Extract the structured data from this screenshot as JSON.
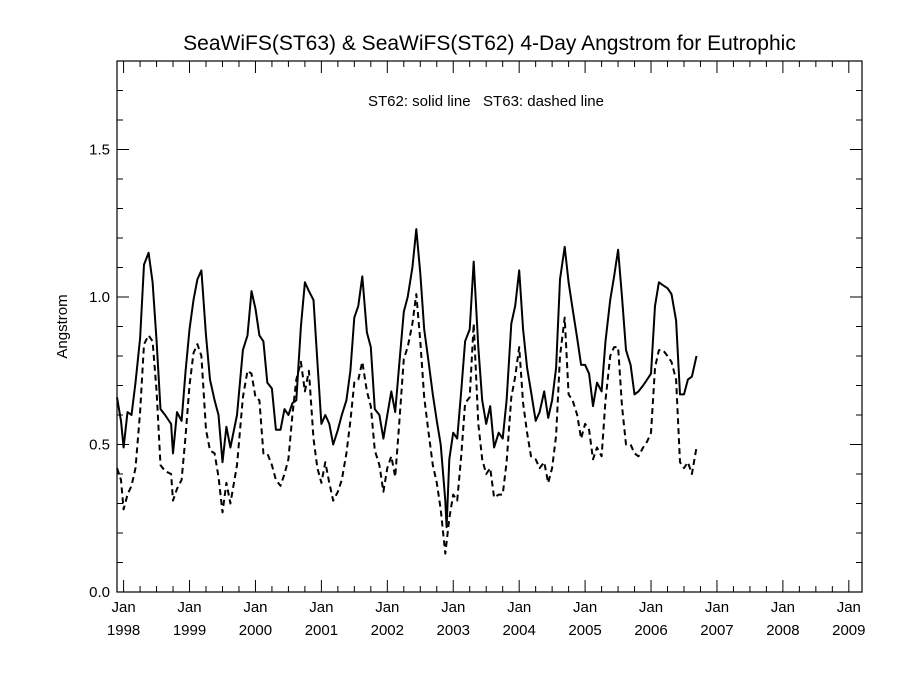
{
  "chart_data": {
    "type": "line",
    "title": "SeaWiFS(ST63) & SeaWiFS(ST62) 4-Day Angstrom for Eutrophic",
    "ylabel": "Angstrom",
    "xlabel": "",
    "annotation": "ST62: solid line   ST63: dashed line",
    "xlim": [
      1997.9,
      2009.2
    ],
    "ylim": [
      0.0,
      1.8
    ],
    "grid": false,
    "y_ticks": [
      {
        "value": 0.0,
        "label": "0.0"
      },
      {
        "value": 0.5,
        "label": "0.5"
      },
      {
        "value": 1.0,
        "label": "1.0"
      },
      {
        "value": 1.5,
        "label": "1.5"
      }
    ],
    "x_ticks": [
      {
        "value": 1998,
        "month": "Jan",
        "year": "1998"
      },
      {
        "value": 1999,
        "month": "Jan",
        "year": "1999"
      },
      {
        "value": 2000,
        "month": "Jan",
        "year": "2000"
      },
      {
        "value": 2001,
        "month": "Jan",
        "year": "2001"
      },
      {
        "value": 2002,
        "month": "Jan",
        "year": "2002"
      },
      {
        "value": 2003,
        "month": "Jan",
        "year": "2003"
      },
      {
        "value": 2004,
        "month": "Jan",
        "year": "2004"
      },
      {
        "value": 2005,
        "month": "Jan",
        "year": "2005"
      },
      {
        "value": 2006,
        "month": "Jan",
        "year": "2006"
      },
      {
        "value": 2007,
        "month": "Jan",
        "year": "2007"
      },
      {
        "value": 2008,
        "month": "Jan",
        "year": "2008"
      },
      {
        "value": 2009,
        "month": "Jan",
        "year": "2009"
      }
    ],
    "series": [
      {
        "name": "ST62",
        "style": "solid",
        "color": "#000000",
        "points": [
          [
            1997.9,
            0.66
          ],
          [
            1997.96,
            0.58
          ],
          [
            1998.0,
            0.49
          ],
          [
            1998.06,
            0.61
          ],
          [
            1998.12,
            0.6
          ],
          [
            1998.18,
            0.71
          ],
          [
            1998.25,
            0.86
          ],
          [
            1998.31,
            1.11
          ],
          [
            1998.38,
            1.15
          ],
          [
            1998.44,
            1.05
          ],
          [
            1998.5,
            0.85
          ],
          [
            1998.56,
            0.62
          ],
          [
            1998.63,
            0.6
          ],
          [
            1998.72,
            0.57
          ],
          [
            1998.75,
            0.47
          ],
          [
            1998.81,
            0.61
          ],
          [
            1998.88,
            0.58
          ],
          [
            1998.94,
            0.75
          ],
          [
            1999.0,
            0.89
          ],
          [
            1999.06,
            0.99
          ],
          [
            1999.12,
            1.06
          ],
          [
            1999.18,
            1.09
          ],
          [
            1999.25,
            0.87
          ],
          [
            1999.31,
            0.72
          ],
          [
            1999.38,
            0.65
          ],
          [
            1999.44,
            0.6
          ],
          [
            1999.5,
            0.44
          ],
          [
            1999.56,
            0.56
          ],
          [
            1999.62,
            0.49
          ],
          [
            1999.72,
            0.6
          ],
          [
            1999.81,
            0.82
          ],
          [
            1999.88,
            0.87
          ],
          [
            1999.94,
            1.02
          ],
          [
            2000.0,
            0.96
          ],
          [
            2000.06,
            0.87
          ],
          [
            2000.12,
            0.85
          ],
          [
            2000.18,
            0.71
          ],
          [
            2000.25,
            0.69
          ],
          [
            2000.31,
            0.55
          ],
          [
            2000.38,
            0.55
          ],
          [
            2000.44,
            0.62
          ],
          [
            2000.5,
            0.6
          ],
          [
            2000.56,
            0.64
          ],
          [
            2000.62,
            0.65
          ],
          [
            2000.69,
            0.9
          ],
          [
            2000.75,
            1.05
          ],
          [
            2000.81,
            1.02
          ],
          [
            2000.88,
            0.99
          ],
          [
            2000.94,
            0.78
          ],
          [
            2001.0,
            0.57
          ],
          [
            2001.06,
            0.6
          ],
          [
            2001.12,
            0.57
          ],
          [
            2001.18,
            0.5
          ],
          [
            2001.25,
            0.55
          ],
          [
            2001.31,
            0.6
          ],
          [
            2001.38,
            0.65
          ],
          [
            2001.44,
            0.75
          ],
          [
            2001.5,
            0.93
          ],
          [
            2001.56,
            0.97
          ],
          [
            2001.62,
            1.07
          ],
          [
            2001.69,
            0.88
          ],
          [
            2001.75,
            0.83
          ],
          [
            2001.81,
            0.62
          ],
          [
            2001.88,
            0.6
          ],
          [
            2001.94,
            0.52
          ],
          [
            2002.0,
            0.6
          ],
          [
            2002.06,
            0.68
          ],
          [
            2002.12,
            0.61
          ],
          [
            2002.18,
            0.77
          ],
          [
            2002.25,
            0.95
          ],
          [
            2002.31,
            1.0
          ],
          [
            2002.38,
            1.1
          ],
          [
            2002.44,
            1.23
          ],
          [
            2002.5,
            1.08
          ],
          [
            2002.56,
            0.89
          ],
          [
            2002.62,
            0.79
          ],
          [
            2002.69,
            0.67
          ],
          [
            2002.75,
            0.58
          ],
          [
            2002.81,
            0.5
          ],
          [
            2002.88,
            0.31
          ],
          [
            2002.9,
            0.22
          ],
          [
            2002.94,
            0.45
          ],
          [
            2003.0,
            0.54
          ],
          [
            2003.06,
            0.52
          ],
          [
            2003.12,
            0.68
          ],
          [
            2003.18,
            0.85
          ],
          [
            2003.25,
            0.89
          ],
          [
            2003.31,
            1.12
          ],
          [
            2003.38,
            0.83
          ],
          [
            2003.44,
            0.65
          ],
          [
            2003.5,
            0.57
          ],
          [
            2003.56,
            0.63
          ],
          [
            2003.62,
            0.49
          ],
          [
            2003.69,
            0.54
          ],
          [
            2003.75,
            0.52
          ],
          [
            2003.81,
            0.65
          ],
          [
            2003.88,
            0.91
          ],
          [
            2003.94,
            0.97
          ],
          [
            2004.0,
            1.09
          ],
          [
            2004.06,
            0.89
          ],
          [
            2004.12,
            0.76
          ],
          [
            2004.18,
            0.68
          ],
          [
            2004.25,
            0.58
          ],
          [
            2004.31,
            0.61
          ],
          [
            2004.38,
            0.68
          ],
          [
            2004.44,
            0.59
          ],
          [
            2004.5,
            0.65
          ],
          [
            2004.56,
            0.76
          ],
          [
            2004.62,
            1.06
          ],
          [
            2004.69,
            1.17
          ],
          [
            2004.75,
            1.05
          ],
          [
            2004.81,
            0.96
          ],
          [
            2004.88,
            0.86
          ],
          [
            2004.94,
            0.77
          ],
          [
            2005.0,
            0.77
          ],
          [
            2005.06,
            0.74
          ],
          [
            2005.12,
            0.63
          ],
          [
            2005.18,
            0.71
          ],
          [
            2005.25,
            0.68
          ],
          [
            2005.31,
            0.85
          ],
          [
            2005.38,
            0.99
          ],
          [
            2005.44,
            1.07
          ],
          [
            2005.5,
            1.16
          ],
          [
            2005.56,
            1.0
          ],
          [
            2005.62,
            0.82
          ],
          [
            2005.69,
            0.77
          ],
          [
            2005.75,
            0.67
          ],
          [
            2005.81,
            0.68
          ],
          [
            2005.88,
            0.7
          ],
          [
            2005.94,
            0.72
          ],
          [
            2006.0,
            0.74
          ],
          [
            2006.06,
            0.97
          ],
          [
            2006.12,
            1.05
          ],
          [
            2006.18,
            1.04
          ],
          [
            2006.25,
            1.03
          ],
          [
            2006.31,
            1.01
          ],
          [
            2006.38,
            0.92
          ],
          [
            2006.44,
            0.67
          ],
          [
            2006.5,
            0.67
          ],
          [
            2006.56,
            0.72
          ],
          [
            2006.62,
            0.73
          ],
          [
            2006.69,
            0.8
          ]
        ]
      },
      {
        "name": "ST63",
        "style": "dashed",
        "color": "#000000",
        "points": [
          [
            1997.9,
            0.42
          ],
          [
            1997.96,
            0.38
          ],
          [
            1998.0,
            0.28
          ],
          [
            1998.06,
            0.33
          ],
          [
            1998.12,
            0.36
          ],
          [
            1998.18,
            0.42
          ],
          [
            1998.25,
            0.61
          ],
          [
            1998.31,
            0.84
          ],
          [
            1998.38,
            0.87
          ],
          [
            1998.44,
            0.85
          ],
          [
            1998.5,
            0.68
          ],
          [
            1998.56,
            0.43
          ],
          [
            1998.63,
            0.41
          ],
          [
            1998.72,
            0.4
          ],
          [
            1998.75,
            0.31
          ],
          [
            1998.81,
            0.35
          ],
          [
            1998.88,
            0.38
          ],
          [
            1998.94,
            0.53
          ],
          [
            1999.0,
            0.7
          ],
          [
            1999.06,
            0.81
          ],
          [
            1999.12,
            0.84
          ],
          [
            1999.18,
            0.8
          ],
          [
            1999.25,
            0.55
          ],
          [
            1999.31,
            0.48
          ],
          [
            1999.38,
            0.47
          ],
          [
            1999.44,
            0.39
          ],
          [
            1999.5,
            0.27
          ],
          [
            1999.56,
            0.37
          ],
          [
            1999.62,
            0.3
          ],
          [
            1999.72,
            0.43
          ],
          [
            1999.81,
            0.66
          ],
          [
            1999.88,
            0.75
          ],
          [
            1999.94,
            0.74
          ],
          [
            2000.0,
            0.66
          ],
          [
            2000.06,
            0.65
          ],
          [
            2000.12,
            0.47
          ],
          [
            2000.18,
            0.47
          ],
          [
            2000.25,
            0.43
          ],
          [
            2000.31,
            0.38
          ],
          [
            2000.38,
            0.36
          ],
          [
            2000.44,
            0.4
          ],
          [
            2000.5,
            0.45
          ],
          [
            2000.56,
            0.6
          ],
          [
            2000.62,
            0.72
          ],
          [
            2000.69,
            0.78
          ],
          [
            2000.75,
            0.68
          ],
          [
            2000.81,
            0.75
          ],
          [
            2000.88,
            0.52
          ],
          [
            2000.94,
            0.42
          ],
          [
            2001.0,
            0.37
          ],
          [
            2001.06,
            0.44
          ],
          [
            2001.12,
            0.37
          ],
          [
            2001.18,
            0.31
          ],
          [
            2001.25,
            0.34
          ],
          [
            2001.31,
            0.38
          ],
          [
            2001.38,
            0.47
          ],
          [
            2001.44,
            0.58
          ],
          [
            2001.5,
            0.71
          ],
          [
            2001.56,
            0.72
          ],
          [
            2001.62,
            0.78
          ],
          [
            2001.69,
            0.68
          ],
          [
            2001.75,
            0.63
          ],
          [
            2001.81,
            0.48
          ],
          [
            2001.88,
            0.43
          ],
          [
            2001.94,
            0.34
          ],
          [
            2002.0,
            0.42
          ],
          [
            2002.06,
            0.46
          ],
          [
            2002.12,
            0.39
          ],
          [
            2002.18,
            0.57
          ],
          [
            2002.25,
            0.79
          ],
          [
            2002.31,
            0.83
          ],
          [
            2002.38,
            0.91
          ],
          [
            2002.44,
            1.01
          ],
          [
            2002.5,
            0.85
          ],
          [
            2002.56,
            0.66
          ],
          [
            2002.62,
            0.55
          ],
          [
            2002.69,
            0.43
          ],
          [
            2002.75,
            0.37
          ],
          [
            2002.81,
            0.28
          ],
          [
            2002.88,
            0.13
          ],
          [
            2002.94,
            0.25
          ],
          [
            2003.0,
            0.33
          ],
          [
            2003.06,
            0.31
          ],
          [
            2003.12,
            0.46
          ],
          [
            2003.18,
            0.64
          ],
          [
            2003.25,
            0.66
          ],
          [
            2003.31,
            0.91
          ],
          [
            2003.38,
            0.57
          ],
          [
            2003.44,
            0.45
          ],
          [
            2003.5,
            0.4
          ],
          [
            2003.56,
            0.42
          ],
          [
            2003.62,
            0.32
          ],
          [
            2003.69,
            0.33
          ],
          [
            2003.75,
            0.33
          ],
          [
            2003.81,
            0.44
          ],
          [
            2003.88,
            0.66
          ],
          [
            2003.94,
            0.73
          ],
          [
            2004.0,
            0.83
          ],
          [
            2004.06,
            0.64
          ],
          [
            2004.12,
            0.54
          ],
          [
            2004.18,
            0.46
          ],
          [
            2004.25,
            0.45
          ],
          [
            2004.31,
            0.42
          ],
          [
            2004.38,
            0.44
          ],
          [
            2004.44,
            0.37
          ],
          [
            2004.5,
            0.42
          ],
          [
            2004.56,
            0.53
          ],
          [
            2004.62,
            0.8
          ],
          [
            2004.69,
            0.93
          ],
          [
            2004.75,
            0.67
          ],
          [
            2004.81,
            0.65
          ],
          [
            2004.88,
            0.6
          ],
          [
            2004.94,
            0.52
          ],
          [
            2005.0,
            0.57
          ],
          [
            2005.06,
            0.55
          ],
          [
            2005.12,
            0.45
          ],
          [
            2005.18,
            0.49
          ],
          [
            2005.25,
            0.46
          ],
          [
            2005.31,
            0.65
          ],
          [
            2005.38,
            0.8
          ],
          [
            2005.44,
            0.83
          ],
          [
            2005.5,
            0.83
          ],
          [
            2005.56,
            0.63
          ],
          [
            2005.62,
            0.5
          ],
          [
            2005.69,
            0.5
          ],
          [
            2005.75,
            0.47
          ],
          [
            2005.81,
            0.46
          ],
          [
            2005.88,
            0.49
          ],
          [
            2005.94,
            0.51
          ],
          [
            2006.0,
            0.54
          ],
          [
            2006.06,
            0.76
          ],
          [
            2006.12,
            0.82
          ],
          [
            2006.18,
            0.82
          ],
          [
            2006.25,
            0.8
          ],
          [
            2006.31,
            0.78
          ],
          [
            2006.38,
            0.72
          ],
          [
            2006.44,
            0.44
          ],
          [
            2006.5,
            0.42
          ],
          [
            2006.56,
            0.44
          ],
          [
            2006.62,
            0.4
          ],
          [
            2006.69,
            0.49
          ]
        ]
      }
    ]
  }
}
